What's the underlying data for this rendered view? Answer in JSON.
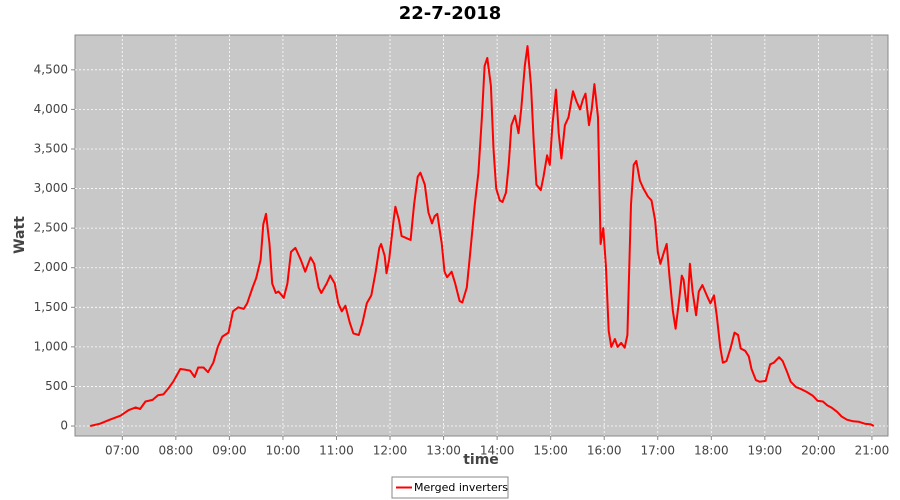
{
  "chart_data": {
    "type": "line",
    "title": "22-7-2018",
    "x_label": "time",
    "y_label": "Watt",
    "x": [
      "06:24",
      "06:35",
      "06:46",
      "06:58",
      "07:07",
      "07:15",
      "07:20",
      "07:26",
      "07:34",
      "07:40",
      "07:46",
      "07:52",
      "07:57",
      "08:05",
      "08:11",
      "08:16",
      "08:21",
      "08:25",
      "08:31",
      "08:36",
      "08:42",
      "08:47",
      "08:52",
      "08:59",
      "09:04",
      "09:10",
      "09:16",
      "09:20",
      "09:26",
      "09:30",
      "09:35",
      "09:38",
      "09:41",
      "09:45",
      "09:48",
      "09:52",
      "09:55",
      "10:01",
      "10:05",
      "10:09",
      "10:14",
      "10:20",
      "10:25",
      "10:31",
      "10:35",
      "10:40",
      "10:43",
      "10:49",
      "10:53",
      "10:58",
      "11:02",
      "11:06",
      "11:10",
      "11:15",
      "11:19",
      "11:25",
      "11:29",
      "11:34",
      "11:39",
      "11:44",
      "11:48",
      "11:50",
      "11:54",
      "11:56",
      "11:59",
      "12:04",
      "12:06",
      "12:10",
      "12:13",
      "12:17",
      "12:23",
      "12:27",
      "12:31",
      "12:34",
      "12:39",
      "12:43",
      "12:47",
      "12:50",
      "12:53",
      "12:58",
      "13:01",
      "13:04",
      "13:09",
      "13:13",
      "13:18",
      "13:21",
      "13:26",
      "13:30",
      "13:35",
      "13:39",
      "13:43",
      "13:46",
      "13:49",
      "13:53",
      "13:56",
      "13:59",
      "14:03",
      "14:06",
      "14:10",
      "14:13",
      "14:16",
      "14:20",
      "14:24",
      "14:27",
      "14:31",
      "14:34",
      "14:38",
      "14:41",
      "14:44",
      "14:49",
      "14:52",
      "14:56",
      "14:59",
      "15:02",
      "15:06",
      "15:09",
      "15:12",
      "15:16",
      "15:20",
      "15:25",
      "15:29",
      "15:33",
      "15:36",
      "15:39",
      "15:43",
      "15:46",
      "15:49",
      "15:53",
      "15:56",
      "15:59",
      "16:02",
      "16:05",
      "16:08",
      "16:12",
      "16:15",
      "16:19",
      "16:23",
      "16:26",
      "16:30",
      "16:33",
      "16:36",
      "16:40",
      "16:44",
      "16:49",
      "16:53",
      "16:57",
      "17:00",
      "17:03",
      "17:07",
      "17:10",
      "17:13",
      "17:17",
      "17:20",
      "17:24",
      "17:27",
      "17:29",
      "17:33",
      "17:36",
      "17:39",
      "17:43",
      "17:46",
      "17:50",
      "17:55",
      "17:59",
      "18:03",
      "18:06",
      "18:10",
      "18:13",
      "18:17",
      "18:22",
      "18:26",
      "18:30",
      "18:33",
      "18:38",
      "18:42",
      "18:45",
      "18:50",
      "18:54",
      "19:01",
      "19:06",
      "19:10",
      "19:16",
      "19:20",
      "19:25",
      "19:29",
      "19:35",
      "19:40",
      "19:47",
      "19:54",
      "19:59",
      "20:05",
      "20:10",
      "20:15",
      "20:21",
      "20:26",
      "20:32",
      "20:39",
      "20:45",
      "20:52",
      "20:59",
      "21:02"
    ],
    "series": [
      {
        "name": "Merged inverters",
        "color": "#ff0000",
        "values": [
          0,
          30,
          80,
          130,
          200,
          235,
          215,
          310,
          330,
          390,
          400,
          480,
          560,
          720,
          710,
          700,
          620,
          740,
          740,
          680,
          800,
          1000,
          1130,
          1180,
          1450,
          1500,
          1480,
          1550,
          1750,
          1870,
          2100,
          2550,
          2680,
          2300,
          1800,
          1680,
          1700,
          1620,
          1800,
          2200,
          2250,
          2100,
          1950,
          2130,
          2050,
          1750,
          1680,
          1800,
          1900,
          1800,
          1550,
          1450,
          1520,
          1300,
          1170,
          1150,
          1300,
          1550,
          1650,
          1950,
          2250,
          2300,
          2150,
          1930,
          2100,
          2600,
          2770,
          2600,
          2400,
          2380,
          2350,
          2800,
          3150,
          3200,
          3050,
          2700,
          2560,
          2650,
          2680,
          2300,
          1950,
          1880,
          1950,
          1800,
          1580,
          1560,
          1750,
          2200,
          2800,
          3200,
          3900,
          4550,
          4650,
          4300,
          3500,
          3000,
          2850,
          2830,
          2950,
          3300,
          3800,
          3920,
          3700,
          4000,
          4550,
          4800,
          4300,
          3600,
          3050,
          2980,
          3150,
          3420,
          3300,
          3800,
          4250,
          3700,
          3380,
          3800,
          3900,
          4230,
          4100,
          4000,
          4120,
          4200,
          3800,
          4000,
          4320,
          3900,
          2300,
          2500,
          2000,
          1200,
          1000,
          1100,
          1000,
          1050,
          990,
          1150,
          2800,
          3300,
          3350,
          3100,
          3000,
          2900,
          2850,
          2600,
          2200,
          2050,
          2200,
          2300,
          1900,
          1450,
          1230,
          1600,
          1900,
          1850,
          1450,
          2050,
          1700,
          1400,
          1700,
          1780,
          1650,
          1550,
          1650,
          1400,
          1000,
          800,
          820,
          1000,
          1180,
          1150,
          980,
          950,
          880,
          720,
          580,
          560,
          570,
          780,
          800,
          870,
          820,
          680,
          560,
          490,
          470,
          430,
          380,
          320,
          310,
          260,
          230,
          180,
          120,
          80,
          60,
          55,
          30,
          20,
          0
        ]
      }
    ],
    "xlim": [
      "06:07",
      "21:18"
    ],
    "xticks": [
      "07:00",
      "08:00",
      "09:00",
      "10:00",
      "11:00",
      "12:00",
      "13:00",
      "14:00",
      "15:00",
      "16:00",
      "17:00",
      "18:00",
      "19:00",
      "20:00",
      "21:00"
    ],
    "ylim": [
      -126,
      4940
    ],
    "yticks": [
      0,
      500,
      {
        "value": 1000,
        "label": "1,000"
      },
      {
        "value": 1500,
        "label": "1,500"
      },
      {
        "value": 2000,
        "label": "2,000"
      },
      {
        "value": 2500,
        "label": "2,500"
      },
      {
        "value": 3000,
        "label": "3,000"
      },
      {
        "value": 3500,
        "label": "3,500"
      },
      {
        "value": 4000,
        "label": "4,000"
      },
      {
        "value": 4500,
        "label": "4,500"
      }
    ],
    "grid": true,
    "plot_background": "#c8c8c8",
    "legend": "bottom"
  }
}
